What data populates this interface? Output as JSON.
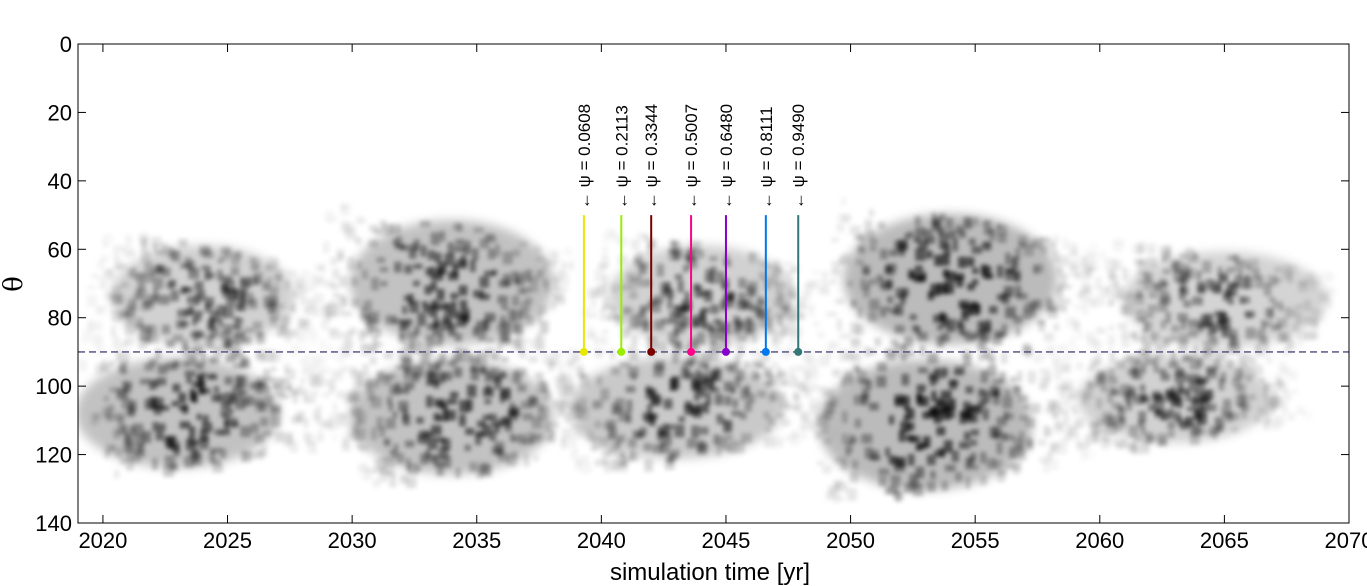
{
  "chart_data": {
    "type": "heatmap",
    "title": "",
    "xlabel": "simulation time [yr]",
    "ylabel": "θ",
    "xlim": [
      2019,
      2070
    ],
    "ylim": [
      0,
      140
    ],
    "y_reversed": true,
    "x_ticks": [
      2020,
      2025,
      2030,
      2035,
      2040,
      2045,
      2050,
      2055,
      2060,
      2065,
      2070
    ],
    "y_ticks": [
      0,
      20,
      40,
      60,
      80,
      100,
      120,
      140
    ],
    "colormap": "grayscale density (white = 0, black = high)",
    "equator": {
      "y": 90,
      "style": "dashed",
      "color": "#4a4a7a"
    },
    "clusters": [
      {
        "hemisphere": "north",
        "x_start": 2019.5,
        "x_end": 2028.5,
        "y_top": 55,
        "y_bottom": 90,
        "peak_x": 2024,
        "intensity": 0.65
      },
      {
        "hemisphere": "south",
        "x_start": 2019.5,
        "x_end": 2029.5,
        "y_top": 90,
        "y_bottom": 128,
        "peak_x": 2023,
        "intensity": 0.85
      },
      {
        "hemisphere": "north",
        "x_start": 2028.5,
        "x_end": 2038.5,
        "y_top": 47,
        "y_bottom": 90,
        "peak_x": 2034,
        "intensity": 0.85
      },
      {
        "hemisphere": "south",
        "x_start": 2029.5,
        "x_end": 2039.5,
        "y_top": 90,
        "y_bottom": 130,
        "peak_x": 2034,
        "intensity": 0.85
      },
      {
        "hemisphere": "north",
        "x_start": 2039.5,
        "x_end": 2048.5,
        "y_top": 55,
        "y_bottom": 90,
        "peak_x": 2044,
        "intensity": 0.65
      },
      {
        "hemisphere": "south",
        "x_start": 2038.5,
        "x_end": 2049.0,
        "y_top": 90,
        "y_bottom": 125,
        "peak_x": 2043,
        "intensity": 0.75
      },
      {
        "hemisphere": "north",
        "x_start": 2049.0,
        "x_end": 2059.5,
        "y_top": 45,
        "y_bottom": 90,
        "peak_x": 2054,
        "intensity": 0.95
      },
      {
        "hemisphere": "south",
        "x_start": 2048.5,
        "x_end": 2059.0,
        "y_top": 90,
        "y_bottom": 135,
        "peak_x": 2053,
        "intensity": 0.95
      },
      {
        "hemisphere": "north",
        "x_start": 2059.0,
        "x_end": 2069.0,
        "y_top": 57,
        "y_bottom": 90,
        "peak_x": 2065,
        "intensity": 0.6
      },
      {
        "hemisphere": "south",
        "x_start": 2058.5,
        "x_end": 2068.0,
        "y_top": 90,
        "y_bottom": 120,
        "peak_x": 2063,
        "intensity": 0.65
      }
    ],
    "markers": [
      {
        "label": "← ψ = 0.0608",
        "x": 2039.3,
        "y_top": 50,
        "y": 90,
        "color": "#e8e800"
      },
      {
        "label": "← ψ = 0.2113",
        "x": 2040.8,
        "y_top": 50,
        "y": 90,
        "color": "#99ee00"
      },
      {
        "label": "← ψ = 0.3344",
        "x": 2042.0,
        "y_top": 50,
        "y": 90,
        "color": "#7a0000"
      },
      {
        "label": "← ψ = 0.5007",
        "x": 2043.6,
        "y_top": 50,
        "y": 90,
        "color": "#ff0088"
      },
      {
        "label": "← ψ = 0.6480",
        "x": 2045.0,
        "y_top": 50,
        "y": 90,
        "color": "#8800cc"
      },
      {
        "label": "← ψ = 0.8111",
        "x": 2046.6,
        "y_top": 50,
        "y": 90,
        "color": "#0077ee"
      },
      {
        "label": "← ψ = 0.9490",
        "x": 2047.9,
        "y_top": 50,
        "y": 90,
        "color": "#337777"
      }
    ]
  }
}
